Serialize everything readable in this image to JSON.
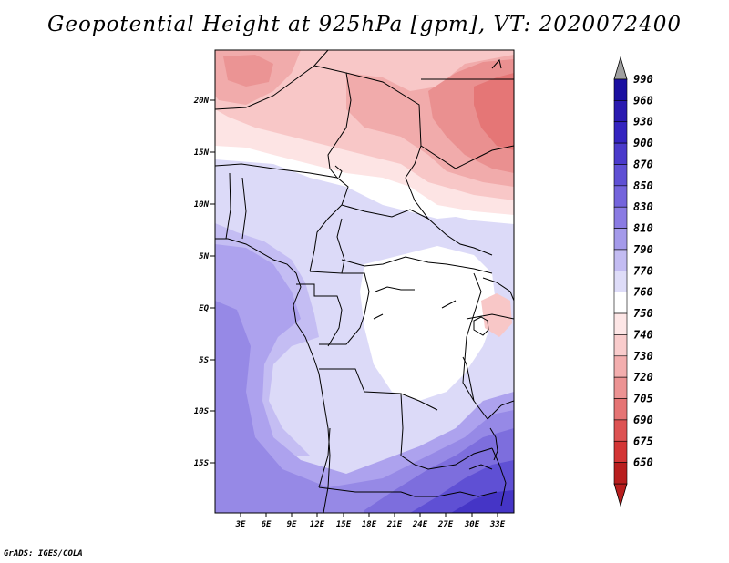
{
  "title": "Geopotential Height at 925hPa [gpm], VT: 2020072400",
  "credit": "GrADS: IGES/COLA",
  "map": {
    "lat_labels": [
      "20N",
      "15N",
      "10N",
      "5N",
      "EQ",
      "5S",
      "10S",
      "15S"
    ],
    "lon_labels": [
      "3E",
      "6E",
      "9E",
      "12E",
      "15E",
      "18E",
      "21E",
      "24E",
      "27E",
      "30E",
      "33E"
    ]
  },
  "colorbar": {
    "levels": [
      "990",
      "960",
      "930",
      "900",
      "870",
      "850",
      "830",
      "810",
      "790",
      "770",
      "760",
      "750",
      "740",
      "730",
      "720",
      "705",
      "690",
      "675",
      "650"
    ],
    "colors": [
      "#1a0fa0",
      "#2a1ab0",
      "#3424c0",
      "#4a3acb",
      "#5f50d4",
      "#7464dc",
      "#8a7be3",
      "#a49aea",
      "#c3bcf2",
      "#dedcf8",
      "#ffffff",
      "#fde6e6",
      "#f9cccc",
      "#f3aeae",
      "#ec9393",
      "#e57474",
      "#dd5252",
      "#d33535",
      "#b81e1e"
    ]
  }
}
